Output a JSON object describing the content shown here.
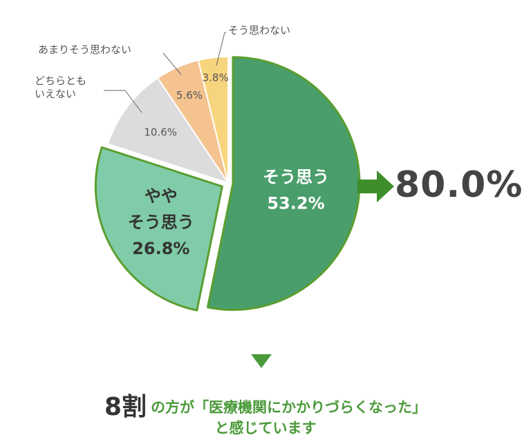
{
  "chart_data": {
    "type": "pie",
    "slices": [
      {
        "label": "そう思う",
        "value": 53.2,
        "display": "53.2%",
        "color": "#4a9e6c"
      },
      {
        "label": "やや\nそう思う",
        "value": 26.8,
        "display": "26.8%",
        "color": "#80cca8"
      },
      {
        "label": "どちらとも\nいえない",
        "value": 10.6,
        "display": "10.6%",
        "color": "#dcdcdc"
      },
      {
        "label": "あまりそう思わない",
        "value": 5.6,
        "display": "5.6%",
        "color": "#f4c390"
      },
      {
        "label": "そう思わない",
        "value": 3.8,
        "display": "3.8%",
        "color": "#f7d47e"
      }
    ],
    "outline_color": "#5a9e2f",
    "total": {
      "value": 80.0,
      "display": "80.0%",
      "arrow_color": "#3e8e2a"
    }
  },
  "conclusion": {
    "emphasis": "8割",
    "line1": "の方が「医療機関にかかりづらくなった」",
    "line2": "と感じています"
  }
}
